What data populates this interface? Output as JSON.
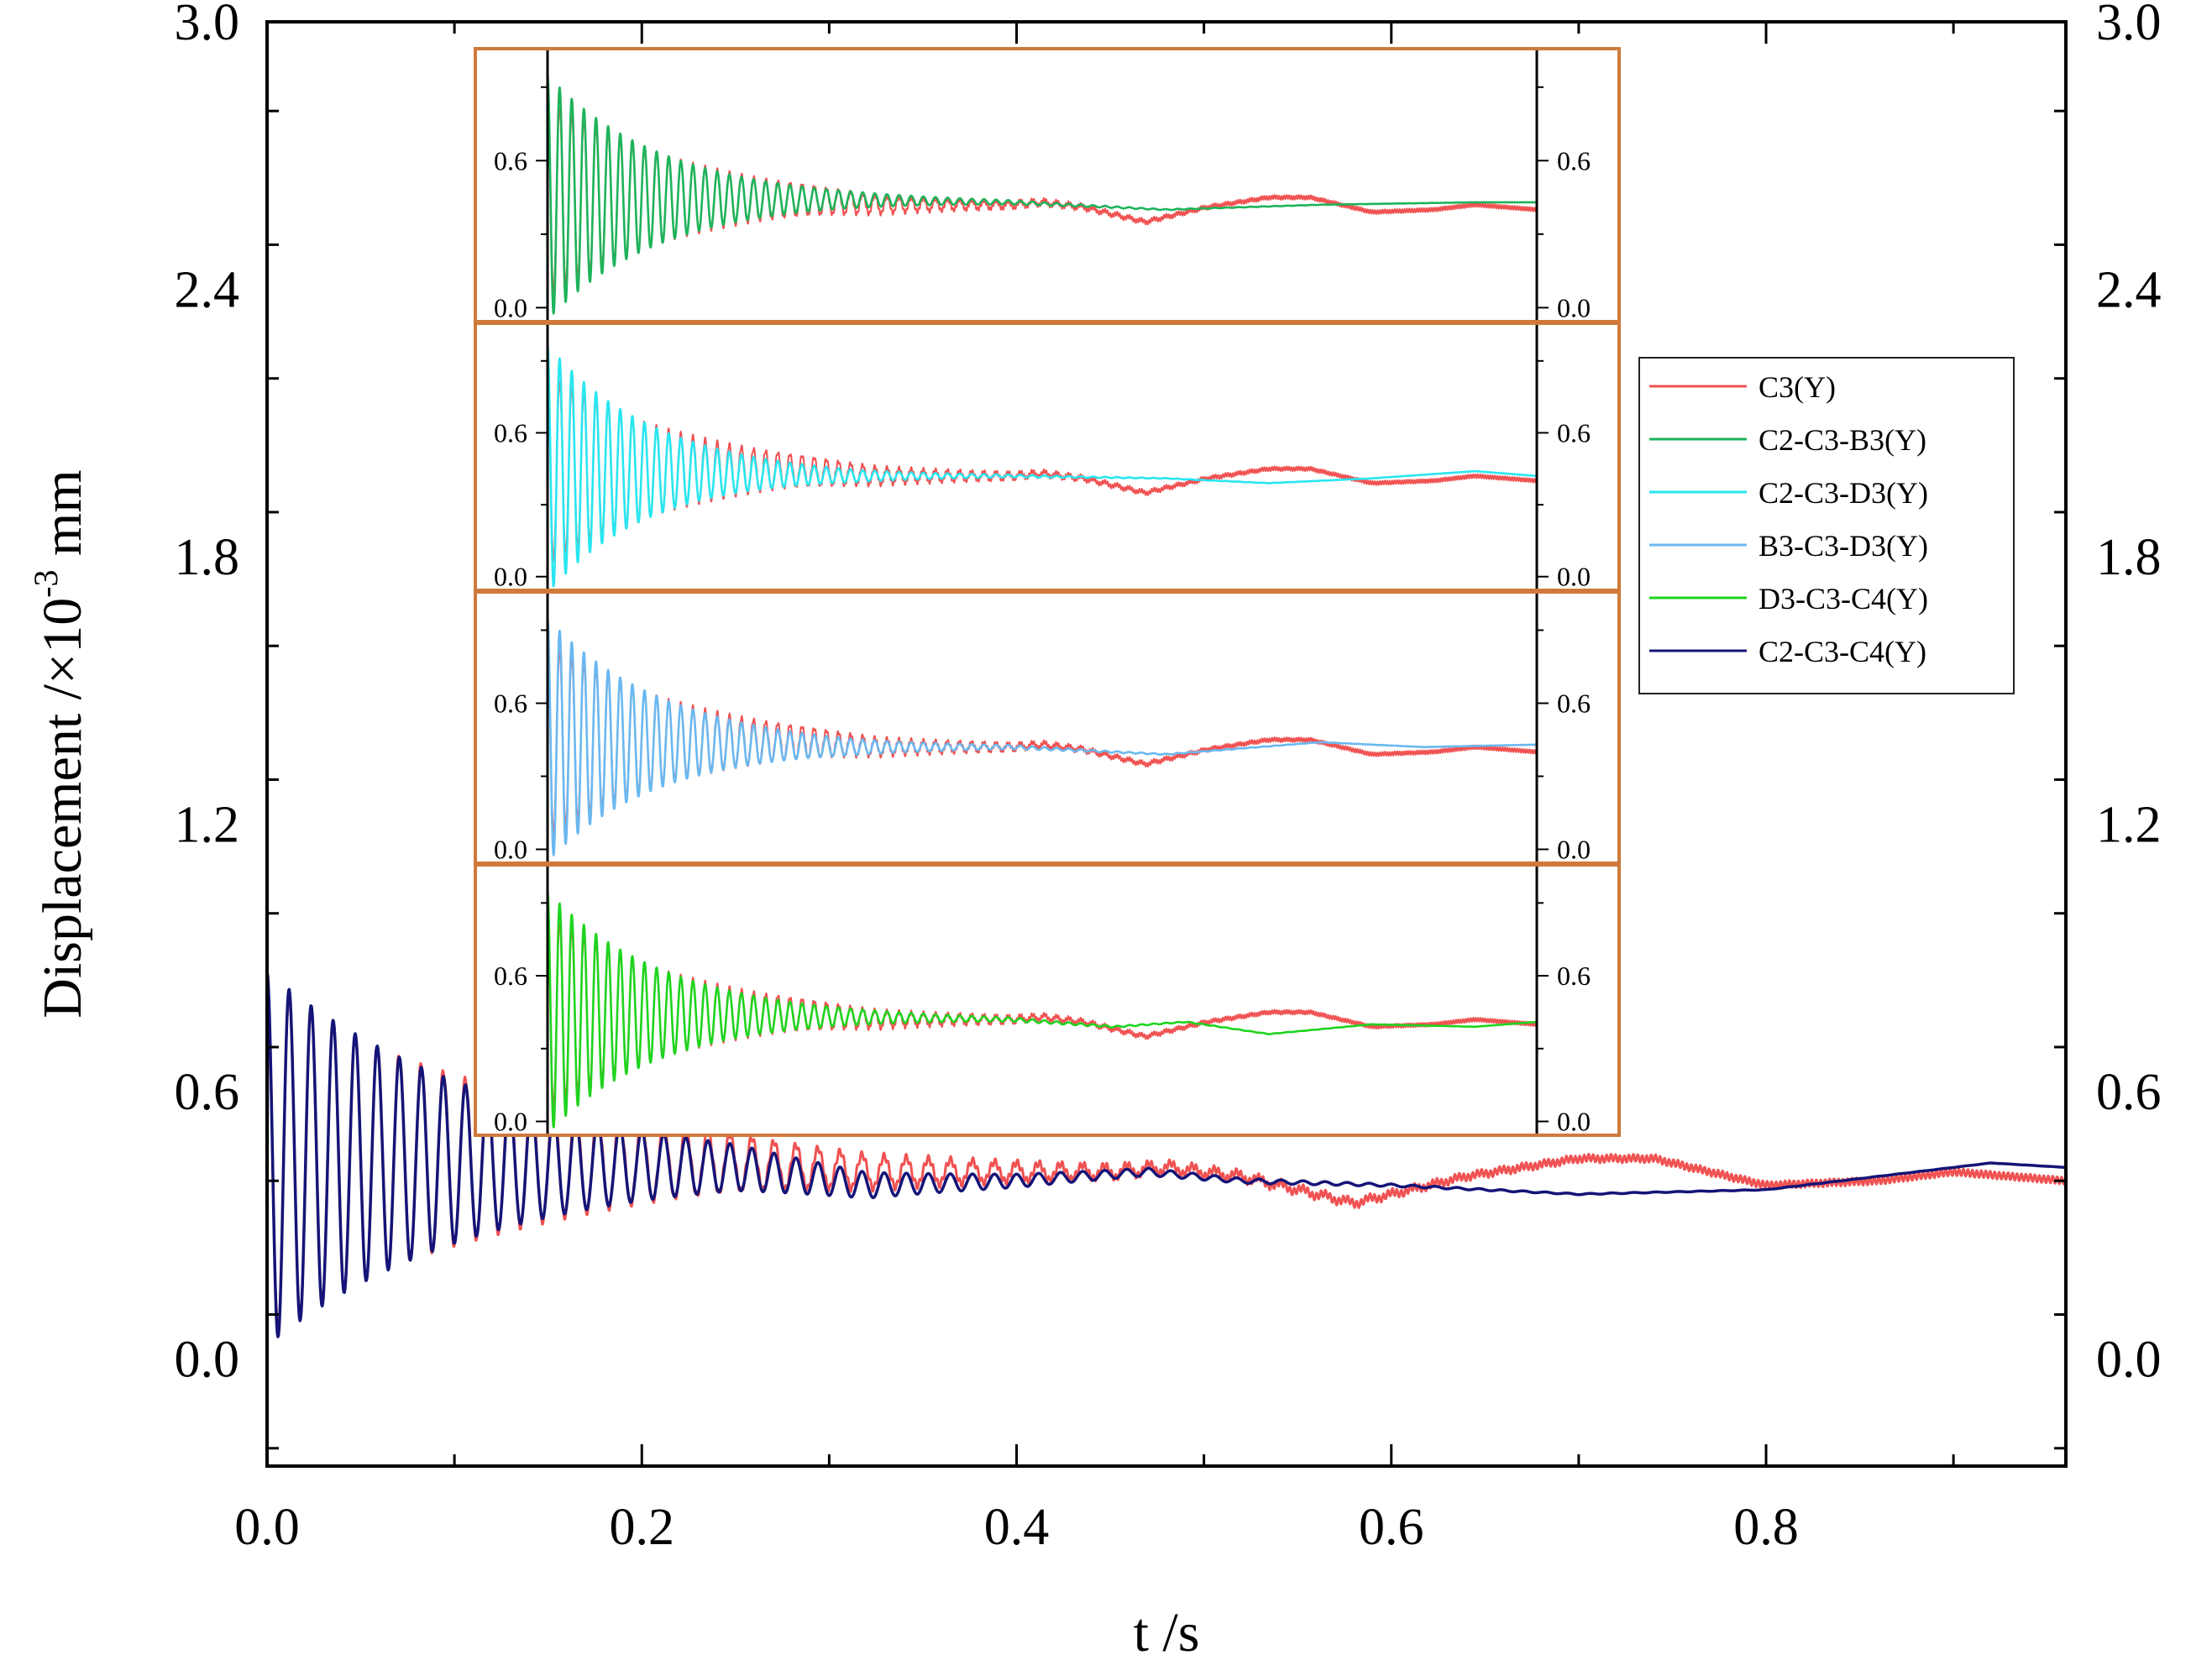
{
  "chart_data": {
    "type": "line",
    "xlabel": "t /s",
    "ylabel_prefix": "Displacement /×10",
    "ylabel_exponent": "-3",
    "ylabel_unit": " mm",
    "xlim": [
      0,
      0.96
    ],
    "ylim": [
      -0.24,
      3.0
    ],
    "x_ticks": [
      0.0,
      0.2,
      0.4,
      0.6,
      0.8
    ],
    "x_tick_labels": [
      "0.0",
      "0.2",
      "0.4",
      "0.6",
      "0.8"
    ],
    "y_ticks": [
      0.0,
      0.6,
      1.2,
      1.8,
      2.4,
      3.0
    ],
    "y_tick_labels": [
      "0.0",
      "0.6",
      "1.2",
      "1.8",
      "2.4",
      "3.0"
    ],
    "legend": {
      "placement": "right",
      "entries": [
        {
          "label": "C3(Y)",
          "color": "#f05252"
        },
        {
          "label": "C2-C3-B3(Y)",
          "color": "#1db35a"
        },
        {
          "label": "C2-C3-D3(Y)",
          "color": "#29e6f0"
        },
        {
          "label": "B3-C3-D3(Y)",
          "color": "#6ab8f0"
        },
        {
          "label": "D3-C3-C4(Y)",
          "color": "#1ed41e"
        },
        {
          "label": "C2-C3-C4(Y)",
          "color": "#141478"
        }
      ]
    },
    "main_series": [
      {
        "name": "C3(Y)",
        "color": "#f05252",
        "signal": {
          "base": 0.45,
          "amp": 0.4,
          "freq": 85,
          "decay": 0.135,
          "noise": 0.008,
          "drift": [
            [
              0,
              0
            ],
            [
              0.25,
              -0.01
            ],
            [
              0.32,
              -0.03
            ],
            [
              0.45,
              -0.03
            ],
            [
              0.48,
              -0.02
            ],
            [
              0.52,
              -0.04
            ],
            [
              0.58,
              -0.1
            ],
            [
              0.64,
              -0.04
            ],
            [
              0.7,
              0.0
            ],
            [
              0.74,
              0.0
            ],
            [
              0.8,
              -0.06
            ],
            [
              0.86,
              -0.05
            ],
            [
              0.9,
              -0.03
            ],
            [
              0.96,
              -0.05
            ]
          ]
        }
      },
      {
        "name": "C2-C3-C4(Y)",
        "color": "#141478",
        "signal": {
          "base": 0.45,
          "amp": 0.42,
          "freq": 85,
          "decay": 0.12,
          "noise": 0.0,
          "drift": [
            [
              0,
              0
            ],
            [
              0.25,
              -0.02
            ],
            [
              0.32,
              -0.06
            ],
            [
              0.4,
              -0.05
            ],
            [
              0.47,
              -0.03
            ],
            [
              0.52,
              -0.05
            ],
            [
              0.6,
              -0.06
            ],
            [
              0.7,
              -0.08
            ],
            [
              0.8,
              -0.07
            ],
            [
              0.86,
              -0.04
            ],
            [
              0.92,
              -0.01
            ],
            [
              0.96,
              -0.02
            ]
          ]
        }
      }
    ],
    "insets": [
      {
        "y_ticks": [
          0.0,
          0.6
        ],
        "y_tick_labels": [
          "0.0",
          "0.6"
        ],
        "series": [
          {
            "name": "C3(Y)",
            "color": "#f05252",
            "signal": {
              "base": 0.45,
              "amp": 0.4,
              "freq": 85,
              "decay": 0.135,
              "noise": 0.008,
              "drift": [
                [
                  0,
                  0
                ],
                [
                  0.25,
                  -0.01
                ],
                [
                  0.32,
                  -0.03
                ],
                [
                  0.45,
                  -0.03
                ],
                [
                  0.48,
                  -0.02
                ],
                [
                  0.52,
                  -0.04
                ],
                [
                  0.58,
                  -0.1
                ],
                [
                  0.64,
                  -0.04
                ],
                [
                  0.7,
                  0.0
                ],
                [
                  0.74,
                  0.0
                ],
                [
                  0.8,
                  -0.06
                ],
                [
                  0.86,
                  -0.05
                ],
                [
                  0.9,
                  -0.03
                ],
                [
                  0.96,
                  -0.05
                ]
              ]
            }
          },
          {
            "name": "C2-C3-B3(Y)",
            "color": "#1db35a",
            "signal": {
              "base": 0.45,
              "amp": 0.5,
              "freq": 85,
              "decay": 0.11,
              "noise": 0.0,
              "drift": [
                [
                  0,
                  0
                ],
                [
                  0.3,
                  -0.01
                ],
                [
                  0.45,
                  -0.02
                ],
                [
                  0.6,
                  -0.05
                ],
                [
                  0.75,
                  -0.03
                ],
                [
                  0.9,
                  -0.02
                ],
                [
                  0.96,
                  -0.02
                ]
              ]
            }
          }
        ]
      },
      {
        "y_ticks": [
          0.0,
          0.6
        ],
        "y_tick_labels": [
          "0.0",
          "0.6"
        ],
        "series": [
          {
            "name": "C3(Y)",
            "color": "#f05252",
            "signal": {
              "base": 0.45,
              "amp": 0.4,
              "freq": 85,
              "decay": 0.135,
              "noise": 0.008,
              "drift": [
                [
                  0,
                  0
                ],
                [
                  0.25,
                  -0.01
                ],
                [
                  0.32,
                  -0.03
                ],
                [
                  0.45,
                  -0.03
                ],
                [
                  0.48,
                  -0.02
                ],
                [
                  0.52,
                  -0.04
                ],
                [
                  0.58,
                  -0.1
                ],
                [
                  0.64,
                  -0.04
                ],
                [
                  0.7,
                  0.0
                ],
                [
                  0.74,
                  0.0
                ],
                [
                  0.8,
                  -0.06
                ],
                [
                  0.86,
                  -0.05
                ],
                [
                  0.9,
                  -0.03
                ],
                [
                  0.96,
                  -0.05
                ]
              ]
            }
          },
          {
            "name": "C2-C3-D3(Y)",
            "color": "#29e6f0",
            "signal": {
              "base": 0.45,
              "amp": 0.52,
              "freq": 85,
              "decay": 0.1,
              "noise": 0.0,
              "drift": [
                [
                  0,
                  0
                ],
                [
                  0.3,
                  -0.03
                ],
                [
                  0.45,
                  -0.03
                ],
                [
                  0.6,
                  -0.04
                ],
                [
                  0.7,
                  -0.06
                ],
                [
                  0.8,
                  -0.04
                ],
                [
                  0.9,
                  -0.01
                ],
                [
                  0.96,
                  -0.03
                ]
              ]
            }
          }
        ]
      },
      {
        "y_ticks": [
          0.0,
          0.6
        ],
        "y_tick_labels": [
          "0.0",
          "0.6"
        ],
        "series": [
          {
            "name": "C3(Y)",
            "color": "#f05252",
            "signal": {
              "base": 0.45,
              "amp": 0.4,
              "freq": 85,
              "decay": 0.135,
              "noise": 0.008,
              "drift": [
                [
                  0,
                  0
                ],
                [
                  0.25,
                  -0.01
                ],
                [
                  0.32,
                  -0.03
                ],
                [
                  0.45,
                  -0.03
                ],
                [
                  0.48,
                  -0.02
                ],
                [
                  0.52,
                  -0.04
                ],
                [
                  0.58,
                  -0.1
                ],
                [
                  0.64,
                  -0.04
                ],
                [
                  0.7,
                  0.0
                ],
                [
                  0.74,
                  0.0
                ],
                [
                  0.8,
                  -0.06
                ],
                [
                  0.86,
                  -0.05
                ],
                [
                  0.9,
                  -0.03
                ],
                [
                  0.96,
                  -0.05
                ]
              ]
            }
          },
          {
            "name": "B3-C3-D3(Y)",
            "color": "#6ab8f0",
            "signal": {
              "base": 0.45,
              "amp": 0.5,
              "freq": 85,
              "decay": 0.11,
              "noise": 0.0,
              "drift": [
                [
                  0,
                  0
                ],
                [
                  0.3,
                  -0.03
                ],
                [
                  0.45,
                  -0.03
                ],
                [
                  0.6,
                  -0.06
                ],
                [
                  0.75,
                  -0.01
                ],
                [
                  0.85,
                  -0.03
                ],
                [
                  0.96,
                  -0.02
                ]
              ]
            }
          }
        ]
      },
      {
        "y_ticks": [
          0.0,
          0.6
        ],
        "y_tick_labels": [
          "0.0",
          "0.6"
        ],
        "series": [
          {
            "name": "C3(Y)",
            "color": "#f05252",
            "signal": {
              "base": 0.45,
              "amp": 0.4,
              "freq": 85,
              "decay": 0.135,
              "noise": 0.008,
              "drift": [
                [
                  0,
                  0
                ],
                [
                  0.25,
                  -0.01
                ],
                [
                  0.32,
                  -0.03
                ],
                [
                  0.45,
                  -0.03
                ],
                [
                  0.48,
                  -0.02
                ],
                [
                  0.52,
                  -0.04
                ],
                [
                  0.58,
                  -0.1
                ],
                [
                  0.64,
                  -0.04
                ],
                [
                  0.7,
                  0.0
                ],
                [
                  0.74,
                  0.0
                ],
                [
                  0.8,
                  -0.06
                ],
                [
                  0.86,
                  -0.05
                ],
                [
                  0.9,
                  -0.03
                ],
                [
                  0.96,
                  -0.05
                ]
              ]
            }
          },
          {
            "name": "D3-C3-C4(Y)",
            "color": "#1ed41e",
            "signal": {
              "base": 0.45,
              "amp": 0.5,
              "freq": 85,
              "decay": 0.11,
              "noise": 0.0,
              "drift": [
                [
                  0,
                  0
                ],
                [
                  0.3,
                  -0.02
                ],
                [
                  0.45,
                  -0.03
                ],
                [
                  0.55,
                  -0.06
                ],
                [
                  0.62,
                  -0.04
                ],
                [
                  0.7,
                  -0.09
                ],
                [
                  0.8,
                  -0.05
                ],
                [
                  0.9,
                  -0.06
                ],
                [
                  0.96,
                  -0.04
                ]
              ]
            }
          }
        ]
      }
    ]
  }
}
